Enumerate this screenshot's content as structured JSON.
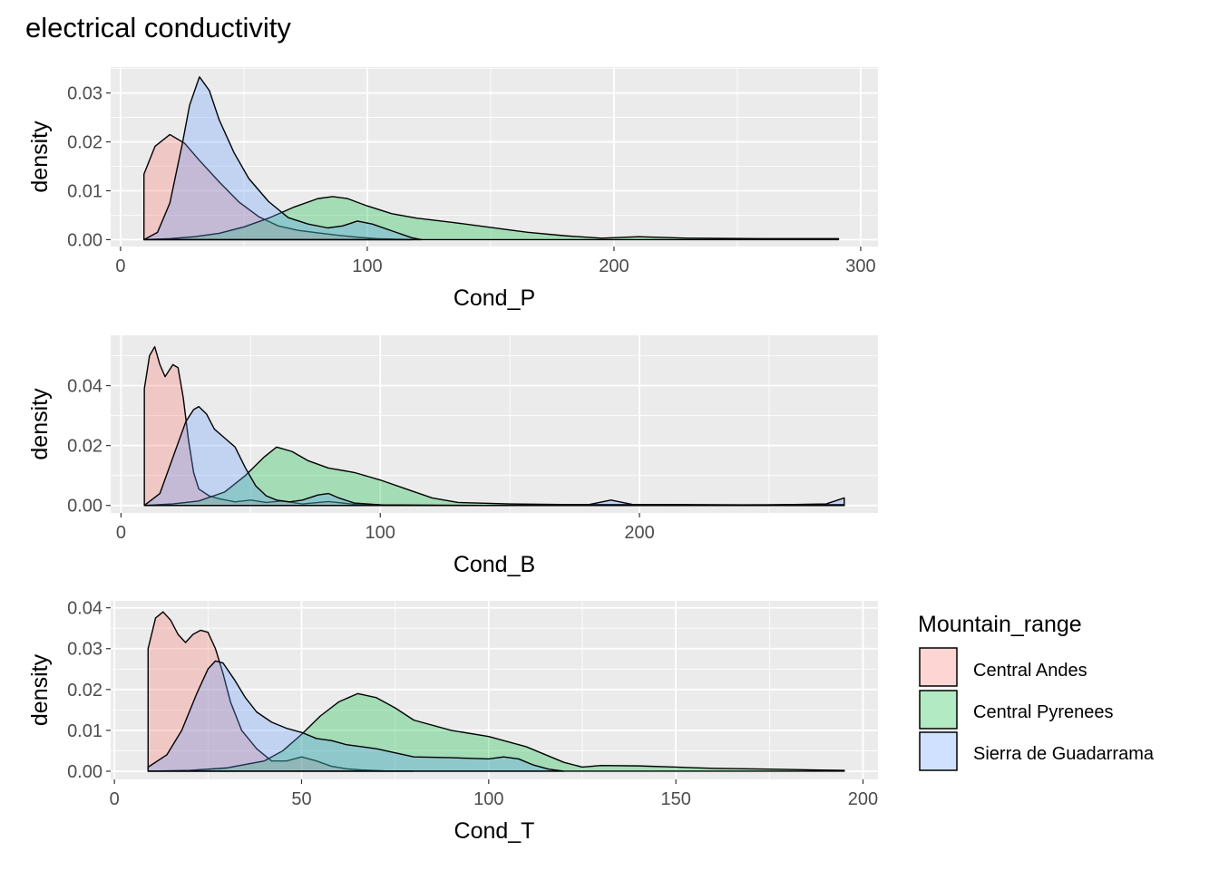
{
  "title": "electrical conductivity",
  "legend": {
    "title": "Mountain_range",
    "position": "right",
    "items": [
      {
        "label": "Central Andes",
        "color": "#F8766D"
      },
      {
        "label": "Central Pyrenees",
        "color": "#00BA38"
      },
      {
        "label": "Sierra de Guadarrama",
        "color": "#619CFF"
      }
    ]
  },
  "style": {
    "panel_background": "#EBEBEB",
    "grid_color": "#FFFFFF",
    "fill_alpha": 0.3,
    "outline_color": "#000000"
  },
  "chart_data": [
    {
      "type": "area",
      "subtype": "density",
      "xlabel": "Cond_P",
      "ylabel": "density",
      "xlim": [
        -4,
        307
      ],
      "ylim": [
        -0.0014,
        0.0353
      ],
      "xticks": [
        0,
        100,
        200,
        300
      ],
      "xtick_labels": [
        "0",
        "100",
        "200",
        "300"
      ],
      "yticks": [
        0,
        0.01,
        0.02,
        0.03
      ],
      "ytick_labels": [
        "0.00",
        "0.01",
        "0.02",
        "0.03"
      ],
      "grid": true,
      "series": [
        {
          "name": "Central Andes",
          "x": [
            9.5,
            14,
            20,
            26,
            32,
            40,
            48,
            56,
            64,
            72,
            80,
            88,
            96,
            104,
            112,
            118
          ],
          "y": [
            0.0134,
            0.0191,
            0.0215,
            0.0197,
            0.0162,
            0.0118,
            0.0077,
            0.0047,
            0.0028,
            0.0019,
            0.0014,
            0.0009,
            0.0005,
            0.0002,
            0.0001,
            0.0
          ]
        },
        {
          "name": "Central Pyrenees",
          "x": [
            9.5,
            20,
            30,
            40,
            50,
            60,
            70,
            80,
            86,
            92,
            100,
            110,
            120,
            135,
            150,
            165,
            180,
            195,
            210,
            230,
            260,
            291
          ],
          "y": [
            0.0,
            0.0002,
            0.0006,
            0.0013,
            0.0026,
            0.0044,
            0.0066,
            0.0084,
            0.0088,
            0.0084,
            0.0069,
            0.0053,
            0.0044,
            0.0035,
            0.0025,
            0.0015,
            0.0008,
            0.0003,
            0.0006,
            0.0003,
            0.0002,
            0.0002
          ]
        },
        {
          "name": "Sierra de Guadarrama",
          "x": [
            9.5,
            15,
            20,
            25,
            28,
            32,
            36,
            40,
            46,
            52,
            60,
            68,
            76,
            84,
            90,
            96,
            102,
            110,
            118,
            122
          ],
          "y": [
            0.0,
            0.0015,
            0.0075,
            0.0195,
            0.0275,
            0.0333,
            0.0305,
            0.0245,
            0.0178,
            0.0125,
            0.0078,
            0.0045,
            0.0032,
            0.0024,
            0.0028,
            0.0038,
            0.0032,
            0.0018,
            0.0004,
            0.0
          ]
        }
      ]
    },
    {
      "type": "area",
      "subtype": "density",
      "xlabel": "Cond_B",
      "ylabel": "density",
      "xlim": [
        -4,
        292
      ],
      "ylim": [
        -0.0025,
        0.0568
      ],
      "xticks": [
        0,
        100,
        200
      ],
      "xtick_labels": [
        "0",
        "100",
        "200"
      ],
      "yticks": [
        0,
        0.02,
        0.04
      ],
      "ytick_labels": [
        "0.00",
        "0.02",
        "0.04"
      ],
      "grid": true,
      "series": [
        {
          "name": "Central Andes",
          "x": [
            9,
            11,
            13,
            15,
            17,
            20,
            22,
            24,
            26,
            28,
            30,
            34,
            38,
            44,
            50,
            56,
            62,
            70,
            80,
            90,
            100,
            110
          ],
          "y": [
            0.039,
            0.05,
            0.053,
            0.047,
            0.043,
            0.047,
            0.046,
            0.036,
            0.022,
            0.011,
            0.0055,
            0.0032,
            0.0022,
            0.0012,
            0.0018,
            0.001,
            0.0015,
            0.0005,
            0.0013,
            0.0004,
            0.0002,
            0.0
          ]
        },
        {
          "name": "Central Pyrenees",
          "x": [
            9,
            20,
            30,
            40,
            48,
            55,
            60,
            66,
            72,
            80,
            90,
            100,
            110,
            120,
            130,
            150,
            170,
            190,
            210,
            240,
            279
          ],
          "y": [
            0.0,
            0.0005,
            0.0015,
            0.0045,
            0.01,
            0.016,
            0.0195,
            0.018,
            0.015,
            0.0125,
            0.011,
            0.0085,
            0.0055,
            0.0025,
            0.001,
            0.0005,
            0.0003,
            0.0003,
            0.0003,
            0.0002,
            0.0003
          ]
        },
        {
          "name": "Sierra de Guadarrama",
          "x": [
            9,
            15,
            20,
            25,
            28,
            30,
            33,
            36,
            40,
            44,
            48,
            52,
            56,
            60,
            65,
            70,
            76,
            80,
            84,
            90,
            100,
            140,
            180,
            189,
            198,
            240,
            272,
            279
          ],
          "y": [
            0.0,
            0.004,
            0.016,
            0.028,
            0.032,
            0.033,
            0.0305,
            0.0255,
            0.0225,
            0.0195,
            0.0125,
            0.0065,
            0.0032,
            0.0018,
            0.0012,
            0.0018,
            0.0035,
            0.004,
            0.0025,
            0.0008,
            0.0002,
            0.0,
            0.0002,
            0.0018,
            0.0002,
            0.0,
            0.0005,
            0.0025
          ]
        }
      ]
    },
    {
      "type": "area",
      "subtype": "density",
      "xlabel": "Cond_T",
      "ylabel": "density",
      "xlim": [
        -1,
        204
      ],
      "ylim": [
        -0.002,
        0.0417
      ],
      "xticks": [
        0,
        50,
        100,
        150,
        200
      ],
      "xtick_labels": [
        "0",
        "50",
        "100",
        "150",
        "200"
      ],
      "yticks": [
        0,
        0.01,
        0.02,
        0.03,
        0.04
      ],
      "ytick_labels": [
        "0.00",
        "0.01",
        "0.02",
        "0.03",
        "0.04"
      ],
      "grid": true,
      "series": [
        {
          "name": "Central Andes",
          "x": [
            9,
            11,
            13,
            15,
            17,
            19,
            21,
            23,
            25,
            27,
            29,
            31,
            34,
            38,
            42,
            46,
            50,
            54,
            58,
            62,
            66,
            72,
            80
          ],
          "y": [
            0.03,
            0.0375,
            0.039,
            0.037,
            0.0335,
            0.0315,
            0.0335,
            0.0345,
            0.034,
            0.03,
            0.024,
            0.017,
            0.01,
            0.0055,
            0.0025,
            0.0025,
            0.0035,
            0.0025,
            0.0012,
            0.0006,
            0.0003,
            0.0001,
            0.0
          ]
        },
        {
          "name": "Central Pyrenees",
          "x": [
            9,
            20,
            30,
            40,
            45,
            50,
            55,
            60,
            65,
            70,
            75,
            80,
            90,
            100,
            110,
            120,
            125,
            130,
            140,
            150,
            160,
            175,
            195
          ],
          "y": [
            0.0,
            0.0002,
            0.0008,
            0.0025,
            0.005,
            0.009,
            0.0135,
            0.017,
            0.019,
            0.018,
            0.0155,
            0.0125,
            0.01,
            0.0085,
            0.006,
            0.0022,
            0.001,
            0.0014,
            0.0013,
            0.001,
            0.0007,
            0.0005,
            0.0002
          ]
        },
        {
          "name": "Sierra de Guadarrama",
          "x": [
            9,
            14,
            18,
            22,
            25,
            27,
            29,
            32,
            35,
            38,
            42,
            46,
            50,
            54,
            58,
            62,
            66,
            70,
            75,
            80,
            90,
            100,
            104,
            108,
            112,
            116,
            120
          ],
          "y": [
            0.001,
            0.004,
            0.01,
            0.019,
            0.025,
            0.027,
            0.0265,
            0.0225,
            0.018,
            0.0145,
            0.012,
            0.0105,
            0.0095,
            0.008,
            0.0075,
            0.0065,
            0.006,
            0.0055,
            0.0045,
            0.0035,
            0.0033,
            0.003,
            0.0035,
            0.003,
            0.0015,
            0.0005,
            0.0
          ]
        }
      ]
    }
  ]
}
